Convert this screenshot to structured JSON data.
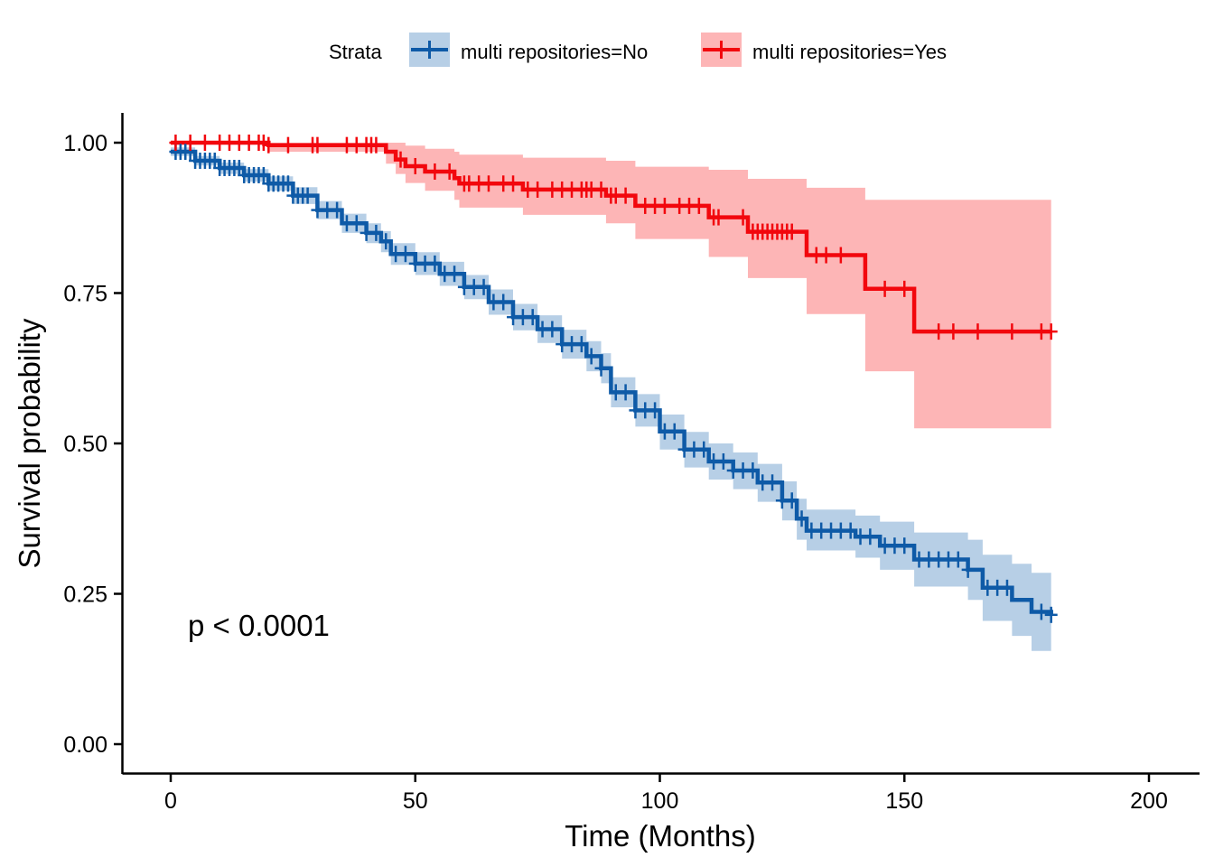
{
  "chart_data": {
    "type": "line",
    "subtype": "kaplan-meier survival curve with confidence bands and censor marks",
    "xlabel": "Time (Months)",
    "ylabel": "Survival probability",
    "xlim": [
      0,
      200
    ],
    "ylim": [
      0,
      1
    ],
    "x_ticks": [
      0,
      50,
      100,
      150,
      200
    ],
    "x_tick_labels": [
      "0",
      "50",
      "100",
      "150",
      "200"
    ],
    "y_ticks": [
      0,
      0.25,
      0.5,
      0.75,
      1.0
    ],
    "y_tick_labels": [
      "0.00",
      "0.25",
      "0.50",
      "0.75",
      "1.00"
    ],
    "grid": false,
    "legend": {
      "title": "Strata",
      "position": "top"
    },
    "annotations": [
      {
        "text": "p < 0.0001",
        "x": 4,
        "y": 0.2
      }
    ],
    "series": [
      {
        "name": "multi repositories=No",
        "color": "#0E5AA7",
        "band_color": "#B7CFE6",
        "points": [
          [
            0,
            0.985
          ],
          [
            5,
            0.97
          ],
          [
            10,
            0.958
          ],
          [
            15,
            0.946
          ],
          [
            20,
            0.932
          ],
          [
            25,
            0.912
          ],
          [
            30,
            0.888
          ],
          [
            35,
            0.866
          ],
          [
            40,
            0.85
          ],
          [
            43,
            0.836
          ],
          [
            45,
            0.815
          ],
          [
            50,
            0.799
          ],
          [
            55,
            0.782
          ],
          [
            60,
            0.76
          ],
          [
            65,
            0.735
          ],
          [
            70,
            0.71
          ],
          [
            75,
            0.69
          ],
          [
            80,
            0.665
          ],
          [
            85,
            0.645
          ],
          [
            88,
            0.625
          ],
          [
            90,
            0.585
          ],
          [
            95,
            0.555
          ],
          [
            100,
            0.52
          ],
          [
            105,
            0.49
          ],
          [
            110,
            0.47
          ],
          [
            115,
            0.455
          ],
          [
            120,
            0.435
          ],
          [
            125,
            0.405
          ],
          [
            128,
            0.375
          ],
          [
            130,
            0.355
          ],
          [
            140,
            0.345
          ],
          [
            145,
            0.33
          ],
          [
            152,
            0.307
          ],
          [
            163,
            0.29
          ],
          [
            166,
            0.26
          ],
          [
            172,
            0.24
          ],
          [
            176,
            0.22
          ],
          [
            180,
            0.215
          ]
        ],
        "ci_lower": [
          [
            0,
            0.978
          ],
          [
            5,
            0.962
          ],
          [
            10,
            0.948
          ],
          [
            15,
            0.935
          ],
          [
            20,
            0.92
          ],
          [
            25,
            0.898
          ],
          [
            30,
            0.873
          ],
          [
            35,
            0.85
          ],
          [
            40,
            0.833
          ],
          [
            43,
            0.818
          ],
          [
            45,
            0.797
          ],
          [
            50,
            0.78
          ],
          [
            55,
            0.762
          ],
          [
            60,
            0.74
          ],
          [
            65,
            0.714
          ],
          [
            70,
            0.688
          ],
          [
            75,
            0.667
          ],
          [
            80,
            0.641
          ],
          [
            85,
            0.62
          ],
          [
            88,
            0.6
          ],
          [
            90,
            0.56
          ],
          [
            95,
            0.528
          ],
          [
            100,
            0.49
          ],
          [
            105,
            0.46
          ],
          [
            110,
            0.44
          ],
          [
            115,
            0.424
          ],
          [
            120,
            0.403
          ],
          [
            125,
            0.372
          ],
          [
            128,
            0.34
          ],
          [
            130,
            0.322
          ],
          [
            140,
            0.31
          ],
          [
            145,
            0.29
          ],
          [
            152,
            0.262
          ],
          [
            163,
            0.24
          ],
          [
            166,
            0.205
          ],
          [
            172,
            0.18
          ],
          [
            176,
            0.155
          ],
          [
            180,
            0.155
          ]
        ],
        "ci_upper": [
          [
            0,
            0.992
          ],
          [
            5,
            0.978
          ],
          [
            10,
            0.967
          ],
          [
            15,
            0.956
          ],
          [
            20,
            0.944
          ],
          [
            25,
            0.926
          ],
          [
            30,
            0.903
          ],
          [
            35,
            0.882
          ],
          [
            40,
            0.866
          ],
          [
            43,
            0.853
          ],
          [
            45,
            0.833
          ],
          [
            50,
            0.818
          ],
          [
            55,
            0.802
          ],
          [
            60,
            0.78
          ],
          [
            65,
            0.756
          ],
          [
            70,
            0.732
          ],
          [
            75,
            0.713
          ],
          [
            80,
            0.689
          ],
          [
            85,
            0.67
          ],
          [
            88,
            0.65
          ],
          [
            90,
            0.61
          ],
          [
            95,
            0.582
          ],
          [
            100,
            0.548
          ],
          [
            105,
            0.519
          ],
          [
            110,
            0.5
          ],
          [
            115,
            0.485
          ],
          [
            120,
            0.466
          ],
          [
            125,
            0.437
          ],
          [
            128,
            0.408
          ],
          [
            130,
            0.39
          ],
          [
            140,
            0.38
          ],
          [
            145,
            0.37
          ],
          [
            152,
            0.352
          ],
          [
            163,
            0.34
          ],
          [
            166,
            0.315
          ],
          [
            172,
            0.3
          ],
          [
            176,
            0.285
          ],
          [
            180,
            0.285
          ]
        ],
        "censor_times": [
          1,
          2,
          3,
          4,
          5,
          6,
          7,
          8,
          9,
          10,
          11,
          12,
          13,
          14,
          15,
          16,
          17,
          18,
          19,
          20,
          21,
          22,
          23,
          24,
          25,
          26,
          27,
          28,
          30,
          32,
          34,
          36,
          38,
          40,
          42,
          44,
          46,
          48,
          50,
          52,
          54,
          56,
          58,
          60,
          62,
          64,
          66,
          68,
          70,
          72,
          74,
          76,
          78,
          80,
          82,
          84,
          86,
          88,
          91,
          93,
          95,
          97,
          99,
          101,
          103,
          105,
          107,
          109,
          111,
          113,
          115,
          117,
          119,
          121,
          123,
          125,
          127,
          129,
          131,
          133,
          135,
          137,
          139,
          141,
          143,
          146,
          148,
          150,
          153,
          155,
          157,
          159,
          161,
          163,
          167,
          169,
          171,
          178,
          180
        ]
      },
      {
        "name": "multi repositories=Yes",
        "color": "#F2070D",
        "band_color": "#FDB5B6",
        "points": [
          [
            0,
            1.0
          ],
          [
            20,
            0.996
          ],
          [
            44,
            0.985
          ],
          [
            46,
            0.972
          ],
          [
            48,
            0.961
          ],
          [
            52,
            0.952
          ],
          [
            58,
            0.941
          ],
          [
            59,
            0.932
          ],
          [
            72,
            0.922
          ],
          [
            89,
            0.912
          ],
          [
            95,
            0.895
          ],
          [
            110,
            0.876
          ],
          [
            118,
            0.852
          ],
          [
            130,
            0.813
          ],
          [
            142,
            0.757
          ],
          [
            152,
            0.686
          ],
          [
            180,
            0.686
          ]
        ],
        "ci_lower": [
          [
            0,
            1.0
          ],
          [
            20,
            0.985
          ],
          [
            44,
            0.965
          ],
          [
            46,
            0.948
          ],
          [
            48,
            0.933
          ],
          [
            52,
            0.92
          ],
          [
            58,
            0.905
          ],
          [
            59,
            0.892
          ],
          [
            72,
            0.88
          ],
          [
            89,
            0.866
          ],
          [
            95,
            0.84
          ],
          [
            110,
            0.81
          ],
          [
            118,
            0.775
          ],
          [
            130,
            0.715
          ],
          [
            142,
            0.62
          ],
          [
            152,
            0.525
          ],
          [
            180,
            0.525
          ]
        ],
        "ci_upper": [
          [
            0,
            1.0
          ],
          [
            20,
            1.0
          ],
          [
            44,
            1.0
          ],
          [
            46,
            1.0
          ],
          [
            48,
            0.995
          ],
          [
            52,
            0.99
          ],
          [
            58,
            0.985
          ],
          [
            59,
            0.98
          ],
          [
            72,
            0.975
          ],
          [
            89,
            0.97
          ],
          [
            95,
            0.96
          ],
          [
            110,
            0.955
          ],
          [
            118,
            0.94
          ],
          [
            130,
            0.925
          ],
          [
            142,
            0.905
          ],
          [
            152,
            0.905
          ],
          [
            180,
            0.905
          ]
        ],
        "censor_times": [
          1,
          4,
          7,
          10,
          12,
          14,
          16,
          18,
          19,
          20,
          24,
          29,
          30,
          36,
          38,
          40,
          41,
          42,
          47,
          50,
          54,
          57,
          60,
          61,
          63,
          65,
          68,
          70,
          73,
          75,
          78,
          80,
          82,
          84,
          85,
          86,
          88,
          90,
          91,
          93,
          97,
          99,
          101,
          104,
          106,
          108,
          111,
          112,
          117,
          119,
          120,
          121,
          122,
          123,
          124,
          125,
          126,
          127,
          132,
          134,
          137,
          146,
          150,
          157,
          160,
          165,
          172,
          178,
          180
        ]
      }
    ]
  }
}
